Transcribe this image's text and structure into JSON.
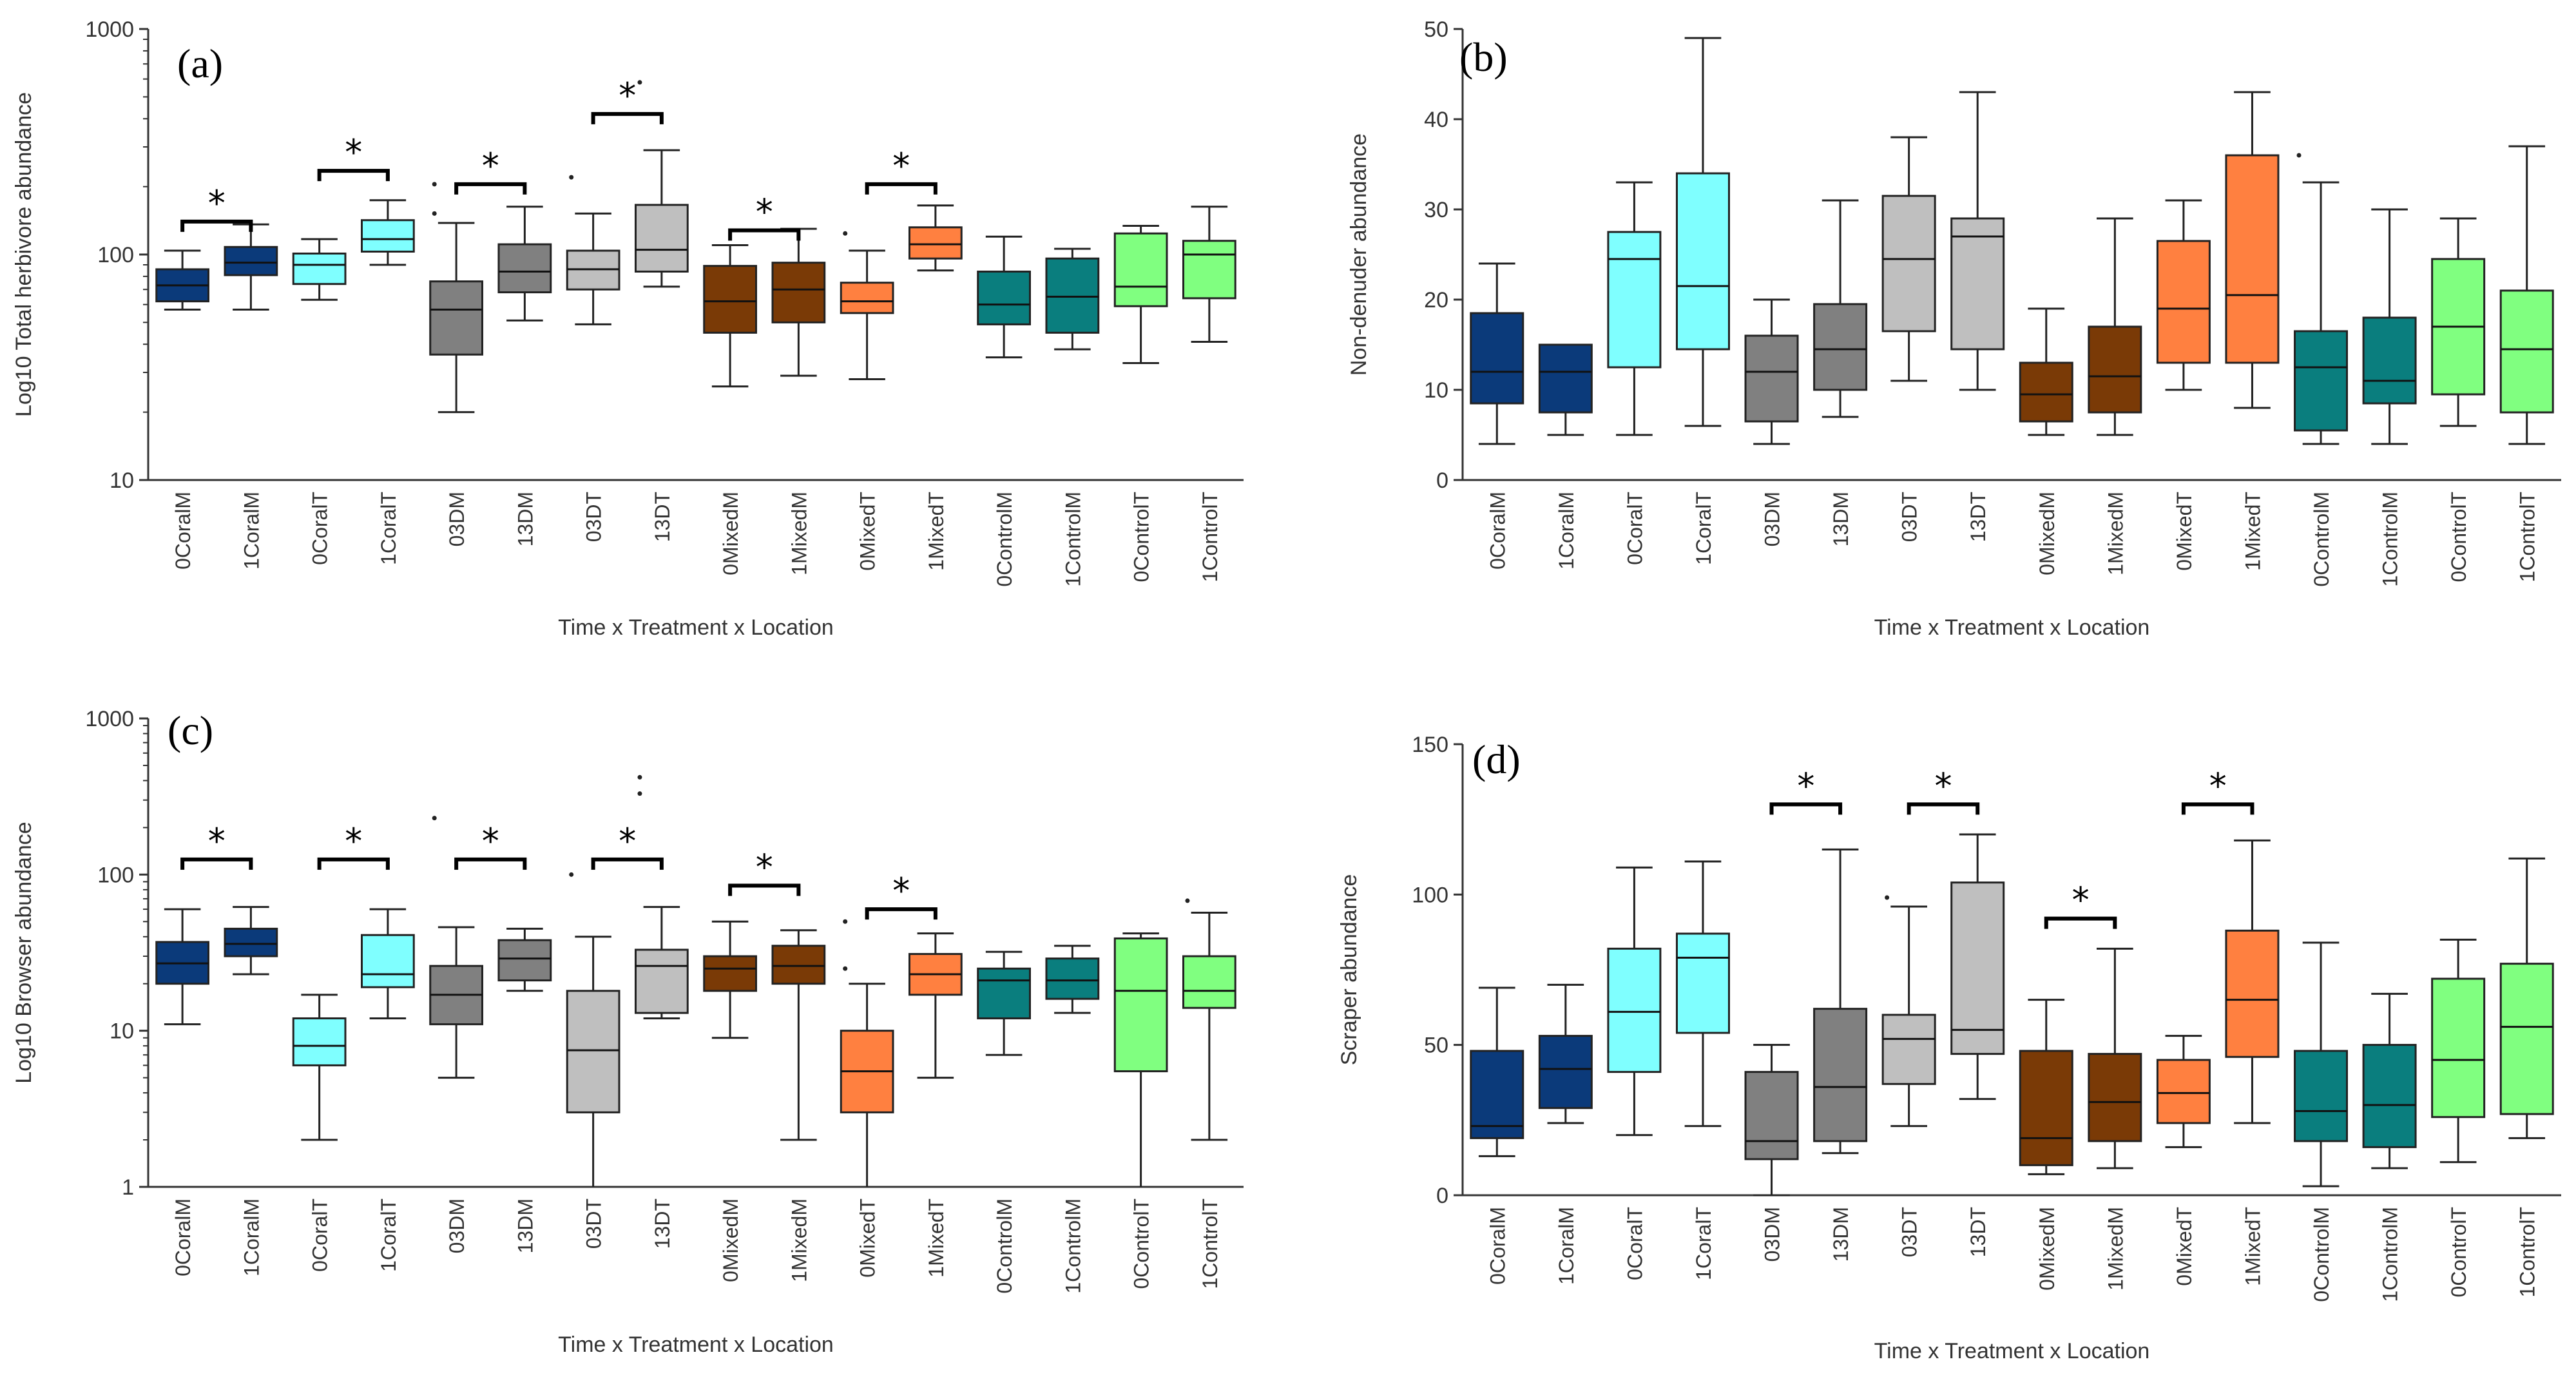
{
  "chart_data": [
    {
      "type": "boxplot",
      "panel": "(a)",
      "ylabel": "Log10 Total herbivore abundance",
      "xlabel": "Time x Treatment x Location",
      "yscale": "log",
      "ylim": [
        10,
        1000
      ],
      "yticks": [
        10,
        100,
        1000
      ],
      "ytick_labels": [
        "10",
        "100",
        "1000"
      ],
      "categories": [
        "0CoralM",
        "1CoralM",
        "0CoralT",
        "1CoralT",
        "03DM",
        "13DM",
        "03DT",
        "13DT",
        "0MixedM",
        "1MixedM",
        "0MixedT",
        "1MixedT",
        "0ControlM",
        "1ControlM",
        "0ControlT",
        "1ControlT"
      ],
      "colors": [
        "#0B3A7A",
        "#0B3A7A",
        "#7FFFFF",
        "#7FFFFF",
        "#808080",
        "#808080",
        "#BFBFBF",
        "#BFBFBF",
        "#7A3A06",
        "#7A3A06",
        "#FF8040",
        "#FF8040",
        "#0A7E7E",
        "#0A7E7E",
        "#80FF80",
        "#80FF80"
      ],
      "boxes": [
        {
          "min": 57,
          "q1": 62,
          "median": 73,
          "q3": 86,
          "max": 104
        },
        {
          "min": 57,
          "q1": 81,
          "median": 92,
          "q3": 108,
          "max": 136
        },
        {
          "min": 63,
          "q1": 74,
          "median": 90,
          "q3": 101,
          "max": 117
        },
        {
          "min": 90,
          "q1": 103,
          "median": 117,
          "q3": 142,
          "max": 174
        },
        {
          "min": 20,
          "q1": 36,
          "median": 57,
          "q3": 76,
          "max": 138
        },
        {
          "min": 51,
          "q1": 68,
          "median": 84,
          "q3": 111,
          "max": 163
        },
        {
          "min": 49,
          "q1": 70,
          "median": 86,
          "q3": 104,
          "max": 152
        },
        {
          "min": 72,
          "q1": 84,
          "median": 105,
          "q3": 166,
          "max": 290
        },
        {
          "min": 26,
          "q1": 45,
          "median": 62,
          "q3": 89,
          "max": 110
        },
        {
          "min": 29,
          "q1": 50,
          "median": 70,
          "q3": 92,
          "max": 130
        },
        {
          "min": 28,
          "q1": 55,
          "median": 62,
          "q3": 75,
          "max": 104
        },
        {
          "min": 85,
          "q1": 96,
          "median": 111,
          "q3": 132,
          "max": 165
        },
        {
          "min": 35,
          "q1": 49,
          "median": 60,
          "q3": 84,
          "max": 120
        },
        {
          "min": 38,
          "q1": 45,
          "median": 65,
          "q3": 96,
          "max": 106
        },
        {
          "min": 33,
          "q1": 59,
          "median": 72,
          "q3": 124,
          "max": 134
        },
        {
          "min": 41,
          "q1": 64,
          "median": 100,
          "q3": 115,
          "max": 163
        }
      ],
      "outliers": [
        {
          "cat": 4,
          "value": 152
        },
        {
          "cat": 4,
          "value": 205
        },
        {
          "cat": 6,
          "value": 220
        },
        {
          "cat": 7,
          "value": 580
        },
        {
          "cat": 10,
          "value": 124
        }
      ],
      "significance": [
        {
          "from": 0,
          "to": 1,
          "level": 140,
          "label": "*"
        },
        {
          "from": 2,
          "to": 3,
          "level": 235,
          "label": "*"
        },
        {
          "from": 4,
          "to": 5,
          "level": 205,
          "label": "*"
        },
        {
          "from": 6,
          "to": 7,
          "level": 420,
          "label": "*"
        },
        {
          "from": 8,
          "to": 9,
          "level": 128,
          "label": "*"
        },
        {
          "from": 10,
          "to": 11,
          "level": 205,
          "label": "*"
        }
      ]
    },
    {
      "type": "boxplot",
      "panel": "(b)",
      "ylabel": "Non-denuder abundance",
      "xlabel": "Time x Treatment x Location",
      "yscale": "linear",
      "ylim": [
        0,
        50
      ],
      "yticks": [
        0,
        10,
        20,
        30,
        40,
        50
      ],
      "ytick_labels": [
        "0",
        "10",
        "20",
        "30",
        "40",
        "50"
      ],
      "categories": [
        "0CoralM",
        "1CoralM",
        "0CoralT",
        "1CoralT",
        "03DM",
        "13DM",
        "03DT",
        "13DT",
        "0MixedM",
        "1MixedM",
        "0MixedT",
        "1MixedT",
        "0ControlM",
        "1ControlM",
        "0ControlT",
        "1ControlT"
      ],
      "colors": [
        "#0B3A7A",
        "#0B3A7A",
        "#7FFFFF",
        "#7FFFFF",
        "#808080",
        "#808080",
        "#BFBFBF",
        "#BFBFBF",
        "#7A3A06",
        "#7A3A06",
        "#FF8040",
        "#FF8040",
        "#0A7E7E",
        "#0A7E7E",
        "#80FF80",
        "#80FF80"
      ],
      "boxes": [
        {
          "min": 4,
          "q1": 8.5,
          "median": 12,
          "q3": 18.5,
          "max": 24
        },
        {
          "min": 5,
          "q1": 7.5,
          "median": 12,
          "q3": 15,
          "max": 15
        },
        {
          "min": 5,
          "q1": 12.5,
          "median": 24.5,
          "q3": 27.5,
          "max": 33
        },
        {
          "min": 6,
          "q1": 14.5,
          "median": 21.5,
          "q3": 34,
          "max": 49
        },
        {
          "min": 4,
          "q1": 6.5,
          "median": 12,
          "q3": 16,
          "max": 20
        },
        {
          "min": 7,
          "q1": 10,
          "median": 14.5,
          "q3": 19.5,
          "max": 31
        },
        {
          "min": 11,
          "q1": 16.5,
          "median": 24.5,
          "q3": 31.5,
          "max": 38
        },
        {
          "min": 10,
          "q1": 14.5,
          "median": 27,
          "q3": 29,
          "max": 43
        },
        {
          "min": 5,
          "q1": 6.5,
          "median": 9.5,
          "q3": 13,
          "max": 19
        },
        {
          "min": 5,
          "q1": 7.5,
          "median": 11.5,
          "q3": 17,
          "max": 29
        },
        {
          "min": 10,
          "q1": 13,
          "median": 19,
          "q3": 26.5,
          "max": 31
        },
        {
          "min": 8,
          "q1": 13,
          "median": 20.5,
          "q3": 36,
          "max": 43
        },
        {
          "min": 4,
          "q1": 5.5,
          "median": 12.5,
          "q3": 16.5,
          "max": 33
        },
        {
          "min": 4,
          "q1": 8.5,
          "median": 11,
          "q3": 18,
          "max": 30
        },
        {
          "min": 6,
          "q1": 9.5,
          "median": 17,
          "q3": 24.5,
          "max": 29
        },
        {
          "min": 4,
          "q1": 7.5,
          "median": 14.5,
          "q3": 21,
          "max": 37
        }
      ],
      "outliers": [
        {
          "cat": 12,
          "value": 36
        }
      ],
      "significance": []
    },
    {
      "type": "boxplot",
      "panel": "(c)",
      "ylabel": "Log10 Browser abundance",
      "xlabel": "Time x Treatment x Location",
      "yscale": "log",
      "ylim": [
        1,
        1000
      ],
      "yticks": [
        1,
        10,
        100,
        1000
      ],
      "ytick_labels": [
        "1",
        "10",
        "100",
        "1000"
      ],
      "categories": [
        "0CoralM",
        "1CoralM",
        "0CoralT",
        "1CoralT",
        "03DM",
        "13DM",
        "03DT",
        "13DT",
        "0MixedM",
        "1MixedM",
        "0MixedT",
        "1MixedT",
        "0ControlM",
        "1ControlM",
        "0ControlT",
        "1ControlT"
      ],
      "colors": [
        "#0B3A7A",
        "#0B3A7A",
        "#7FFFFF",
        "#7FFFFF",
        "#808080",
        "#808080",
        "#BFBFBF",
        "#BFBFBF",
        "#7A3A06",
        "#7A3A06",
        "#FF8040",
        "#FF8040",
        "#0A7E7E",
        "#0A7E7E",
        "#80FF80",
        "#80FF80"
      ],
      "boxes": [
        {
          "min": 11,
          "q1": 20,
          "median": 27,
          "q3": 37,
          "max": 60
        },
        {
          "min": 23,
          "q1": 30,
          "median": 36,
          "q3": 45,
          "max": 62
        },
        {
          "min": 2,
          "q1": 6,
          "median": 8,
          "q3": 12,
          "max": 17
        },
        {
          "min": 12,
          "q1": 19,
          "median": 23,
          "q3": 41,
          "max": 60
        },
        {
          "min": 5,
          "q1": 11,
          "median": 17,
          "q3": 26,
          "max": 46
        },
        {
          "min": 18,
          "q1": 21,
          "median": 29,
          "q3": 38,
          "max": 45
        },
        {
          "min": 0.8,
          "q1": 3,
          "median": 7.5,
          "q3": 18,
          "max": 40
        },
        {
          "min": 12,
          "q1": 13,
          "median": 26,
          "q3": 33,
          "max": 62
        },
        {
          "min": 9,
          "q1": 18,
          "median": 25,
          "q3": 30,
          "max": 50
        },
        {
          "min": 2,
          "q1": 20,
          "median": 26,
          "q3": 35,
          "max": 44
        },
        {
          "min": 0.8,
          "q1": 3,
          "median": 5.5,
          "q3": 10,
          "max": 20
        },
        {
          "min": 5,
          "q1": 17,
          "median": 23,
          "q3": 31,
          "max": 42
        },
        {
          "min": 7,
          "q1": 12,
          "median": 21,
          "q3": 25,
          "max": 32
        },
        {
          "min": 13,
          "q1": 16,
          "median": 21,
          "q3": 29,
          "max": 35
        },
        {
          "min": 0.8,
          "q1": 5.5,
          "median": 18,
          "q3": 39,
          "max": 42
        },
        {
          "min": 2,
          "q1": 14,
          "median": 18,
          "q3": 30,
          "max": 57
        }
      ],
      "outliers": [
        {
          "cat": 4,
          "value": 230
        },
        {
          "cat": 6,
          "value": 100
        },
        {
          "cat": 7,
          "value": 330
        },
        {
          "cat": 7,
          "value": 420
        },
        {
          "cat": 10,
          "value": 25
        },
        {
          "cat": 10,
          "value": 50
        },
        {
          "cat": 15,
          "value": 68
        }
      ],
      "significance": [
        {
          "from": 0,
          "to": 1,
          "level": 125,
          "label": "*"
        },
        {
          "from": 2,
          "to": 3,
          "level": 125,
          "label": "*"
        },
        {
          "from": 4,
          "to": 5,
          "level": 125,
          "label": "*"
        },
        {
          "from": 6,
          "to": 7,
          "level": 125,
          "label": "*"
        },
        {
          "from": 8,
          "to": 9,
          "level": 85,
          "label": "*"
        },
        {
          "from": 10,
          "to": 11,
          "level": 60,
          "label": "*"
        }
      ]
    },
    {
      "type": "boxplot",
      "panel": "(d)",
      "ylabel": "Scraper abundance",
      "xlabel": "Time x Treatment x Location",
      "yscale": "linear",
      "ylim": [
        0,
        150
      ],
      "yticks": [
        0,
        50,
        100,
        150
      ],
      "ytick_labels": [
        "0",
        "50",
        "100",
        "150"
      ],
      "categories": [
        "0CoralM",
        "1CoralM",
        "0CoralT",
        "1CoralT",
        "03DM",
        "13DM",
        "03DT",
        "13DT",
        "0MixedM",
        "1MixedM",
        "0MixedT",
        "1MixedT",
        "0ControlM",
        "1ControlM",
        "0ControlT",
        "1ControlT"
      ],
      "colors": [
        "#0B3A7A",
        "#0B3A7A",
        "#7FFFFF",
        "#7FFFFF",
        "#808080",
        "#808080",
        "#BFBFBF",
        "#BFBFBF",
        "#7A3A06",
        "#7A3A06",
        "#FF8040",
        "#FF8040",
        "#0A7E7E",
        "#0A7E7E",
        "#80FF80",
        "#80FF80"
      ],
      "boxes": [
        {
          "min": 13,
          "q1": 19,
          "median": 23,
          "q3": 48,
          "max": 69
        },
        {
          "min": 24,
          "q1": 29,
          "median": 42,
          "q3": 53,
          "max": 70
        },
        {
          "min": 20,
          "q1": 41,
          "median": 61,
          "q3": 82,
          "max": 109
        },
        {
          "min": 23,
          "q1": 54,
          "median": 79,
          "q3": 87,
          "max": 111
        },
        {
          "min": 0,
          "q1": 12,
          "median": 18,
          "q3": 41,
          "max": 50
        },
        {
          "min": 14,
          "q1": 18,
          "median": 36,
          "q3": 62,
          "max": 115
        },
        {
          "min": 23,
          "q1": 37,
          "median": 52,
          "q3": 60,
          "max": 96
        },
        {
          "min": 32,
          "q1": 47,
          "median": 55,
          "q3": 104,
          "max": 120
        },
        {
          "min": 7,
          "q1": 10,
          "median": 19,
          "q3": 48,
          "max": 65
        },
        {
          "min": 9,
          "q1": 18,
          "median": 31,
          "q3": 47,
          "max": 82
        },
        {
          "min": 16,
          "q1": 24,
          "median": 34,
          "q3": 45,
          "max": 53
        },
        {
          "min": 24,
          "q1": 46,
          "median": 65,
          "q3": 88,
          "max": 118
        },
        {
          "min": 3,
          "q1": 18,
          "median": 28,
          "q3": 48,
          "max": 84
        },
        {
          "min": 9,
          "q1": 16,
          "median": 30,
          "q3": 50,
          "max": 67
        },
        {
          "min": 11,
          "q1": 26,
          "median": 45,
          "q3": 72,
          "max": 85
        },
        {
          "min": 19,
          "q1": 27,
          "median": 56,
          "q3": 77,
          "max": 112
        }
      ],
      "outliers": [
        {
          "cat": 6,
          "value": 99
        }
      ],
      "significance": [
        {
          "from": 4,
          "to": 5,
          "level": 130,
          "label": "*"
        },
        {
          "from": 6,
          "to": 7,
          "level": 130,
          "label": "*"
        },
        {
          "from": 8,
          "to": 9,
          "level": 92,
          "label": "*"
        },
        {
          "from": 10,
          "to": 11,
          "level": 130,
          "label": "*"
        }
      ]
    }
  ]
}
